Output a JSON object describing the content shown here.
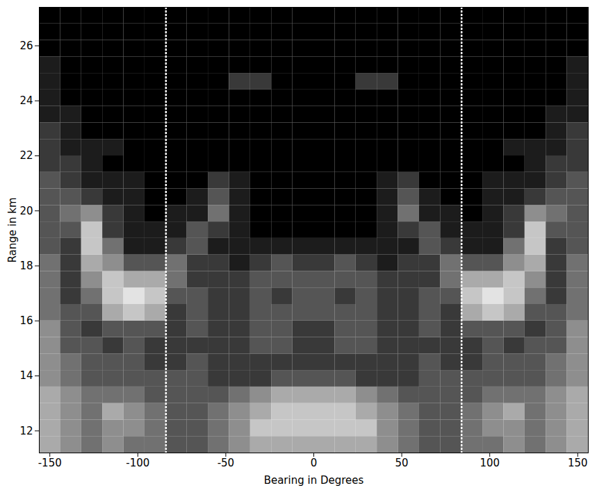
{
  "chart_data": {
    "type": "heatmap",
    "x_label": "Bearing in Degrees",
    "y_label": "Range in km",
    "xlim": [
      -156,
      156
    ],
    "ylim": [
      11.2,
      27.4
    ],
    "xticks": [
      -150,
      -100,
      -50,
      0,
      50,
      100,
      150
    ],
    "yticks": [
      12,
      14,
      16,
      18,
      20,
      22,
      24,
      26
    ],
    "grid": false,
    "xbins": [
      -156,
      -144,
      -132,
      -120,
      -108,
      -96,
      -84,
      -72,
      -60,
      -48,
      -36,
      -24,
      -12,
      0,
      12,
      24,
      36,
      48,
      60,
      72,
      84,
      96,
      108,
      120,
      132,
      144,
      156
    ],
    "ybins": [
      11.2,
      11.8,
      12.4,
      13.0,
      13.6,
      14.2,
      14.8,
      15.4,
      16.0,
      16.6,
      17.2,
      17.8,
      18.4,
      19.0,
      19.6,
      20.2,
      20.8,
      21.4,
      22.0,
      22.6,
      23.2,
      23.8,
      24.4,
      25.0,
      25.6,
      26.2,
      26.8,
      27.4
    ],
    "zlim": [
      0,
      9
    ],
    "cells": [
      [
        6,
        5,
        4,
        5,
        4,
        4,
        3,
        3,
        4,
        5,
        6,
        6,
        6,
        6,
        6,
        6,
        5,
        4,
        3,
        3,
        4,
        4,
        5,
        4,
        5,
        6
      ],
      [
        6,
        5,
        4,
        5,
        5,
        4,
        3,
        3,
        4,
        5,
        7,
        7,
        7,
        7,
        7,
        7,
        5,
        4,
        3,
        3,
        4,
        5,
        5,
        4,
        5,
        6
      ],
      [
        6,
        5,
        4,
        6,
        5,
        4,
        3,
        3,
        4,
        5,
        6,
        7,
        7,
        7,
        7,
        6,
        5,
        4,
        3,
        3,
        4,
        5,
        6,
        4,
        5,
        6
      ],
      [
        6,
        5,
        4,
        4,
        4,
        3,
        3,
        3,
        3,
        4,
        5,
        6,
        6,
        6,
        6,
        5,
        4,
        3,
        3,
        3,
        3,
        4,
        4,
        4,
        5,
        6
      ],
      [
        5,
        4,
        3,
        3,
        3,
        3,
        3,
        3,
        2,
        2,
        2,
        3,
        3,
        3,
        3,
        2,
        2,
        2,
        3,
        3,
        3,
        3,
        3,
        3,
        4,
        5
      ],
      [
        5,
        4,
        3,
        3,
        3,
        2,
        2,
        3,
        2,
        2,
        2,
        2,
        2,
        2,
        2,
        2,
        2,
        2,
        3,
        2,
        2,
        3,
        3,
        3,
        4,
        5
      ],
      [
        5,
        3,
        3,
        2,
        3,
        2,
        2,
        2,
        2,
        2,
        3,
        3,
        2,
        2,
        3,
        3,
        2,
        2,
        2,
        2,
        2,
        3,
        2,
        3,
        3,
        5
      ],
      [
        5,
        3,
        2,
        3,
        3,
        3,
        2,
        3,
        2,
        2,
        3,
        3,
        2,
        2,
        3,
        3,
        2,
        2,
        3,
        2,
        3,
        3,
        3,
        2,
        3,
        5
      ],
      [
        4,
        3,
        3,
        6,
        7,
        6,
        2,
        3,
        2,
        2,
        3,
        3,
        3,
        3,
        3,
        3,
        2,
        2,
        3,
        2,
        6,
        7,
        6,
        3,
        3,
        4
      ],
      [
        4,
        2,
        4,
        7,
        8,
        7,
        3,
        3,
        2,
        2,
        3,
        2,
        3,
        3,
        2,
        3,
        2,
        2,
        3,
        3,
        7,
        8,
        7,
        4,
        2,
        4
      ],
      [
        4,
        2,
        5,
        7,
        6,
        6,
        4,
        2,
        2,
        2,
        3,
        3,
        3,
        3,
        3,
        3,
        2,
        2,
        2,
        4,
        6,
        6,
        7,
        5,
        2,
        4
      ],
      [
        4,
        2,
        6,
        5,
        3,
        3,
        4,
        2,
        2,
        1,
        2,
        3,
        2,
        2,
        3,
        2,
        1,
        2,
        2,
        4,
        3,
        3,
        5,
        6,
        2,
        4
      ],
      [
        3,
        2,
        7,
        4,
        1,
        1,
        2,
        3,
        1,
        1,
        1,
        1,
        1,
        1,
        1,
        1,
        1,
        1,
        3,
        2,
        1,
        1,
        4,
        7,
        2,
        3
      ],
      [
        3,
        3,
        7,
        2,
        1,
        1,
        1,
        3,
        2,
        1,
        0,
        0,
        0,
        0,
        0,
        0,
        1,
        2,
        3,
        1,
        1,
        1,
        2,
        7,
        3,
        3
      ],
      [
        3,
        4,
        5,
        2,
        1,
        0,
        1,
        1,
        4,
        1,
        0,
        0,
        0,
        0,
        0,
        0,
        1,
        4,
        1,
        1,
        0,
        1,
        2,
        5,
        4,
        3
      ],
      [
        3,
        3,
        2,
        1,
        1,
        0,
        0,
        1,
        3,
        1,
        0,
        0,
        0,
        0,
        0,
        0,
        1,
        3,
        1,
        0,
        0,
        1,
        1,
        2,
        3,
        3
      ],
      [
        3,
        2,
        1,
        1,
        1,
        0,
        0,
        0,
        2,
        1,
        0,
        0,
        0,
        0,
        0,
        0,
        1,
        2,
        0,
        0,
        0,
        1,
        1,
        1,
        2,
        3
      ],
      [
        2,
        2,
        1,
        0,
        0,
        0,
        0,
        0,
        0,
        0,
        0,
        0,
        0,
        0,
        0,
        0,
        0,
        0,
        0,
        0,
        0,
        0,
        0,
        1,
        2,
        2
      ],
      [
        2,
        1,
        1,
        1,
        0,
        0,
        0,
        0,
        0,
        0,
        0,
        0,
        0,
        0,
        0,
        0,
        0,
        0,
        0,
        0,
        0,
        0,
        1,
        1,
        1,
        2
      ],
      [
        2,
        1,
        0,
        0,
        0,
        0,
        0,
        0,
        0,
        0,
        0,
        0,
        0,
        0,
        0,
        0,
        0,
        0,
        0,
        0,
        0,
        0,
        0,
        0,
        1,
        2
      ],
      [
        1,
        1,
        0,
        0,
        0,
        0,
        0,
        0,
        0,
        0,
        0,
        0,
        0,
        0,
        0,
        0,
        0,
        0,
        0,
        0,
        0,
        0,
        0,
        0,
        1,
        1
      ],
      [
        1,
        0,
        0,
        0,
        0,
        0,
        0,
        0,
        0,
        0,
        0,
        0,
        0,
        0,
        0,
        0,
        0,
        0,
        0,
        0,
        0,
        0,
        0,
        0,
        0,
        1
      ],
      [
        1,
        0,
        0,
        0,
        0,
        0,
        0,
        0,
        0,
        2,
        2,
        0,
        0,
        0,
        0,
        2,
        2,
        0,
        0,
        0,
        0,
        0,
        0,
        0,
        0,
        1
      ],
      [
        1,
        0,
        0,
        0,
        0,
        0,
        0,
        0,
        0,
        0,
        0,
        0,
        0,
        0,
        0,
        0,
        0,
        0,
        0,
        0,
        0,
        0,
        0,
        0,
        0,
        1
      ],
      [
        0,
        0,
        0,
        0,
        0,
        0,
        0,
        0,
        0,
        0,
        0,
        0,
        0,
        0,
        0,
        0,
        0,
        0,
        0,
        0,
        0,
        0,
        0,
        0,
        0,
        0
      ],
      [
        0,
        0,
        0,
        0,
        0,
        0,
        0,
        0,
        0,
        0,
        0,
        0,
        0,
        0,
        0,
        0,
        0,
        0,
        0,
        0,
        0,
        0,
        0,
        0,
        0,
        0
      ],
      [
        0,
        0,
        0,
        0,
        0,
        0,
        0,
        0,
        0,
        0,
        0,
        0,
        0,
        0,
        0,
        0,
        0,
        0,
        0,
        0,
        0,
        0,
        0,
        0,
        0,
        0
      ]
    ],
    "vertical_lines": [
      -84,
      84
    ]
  }
}
